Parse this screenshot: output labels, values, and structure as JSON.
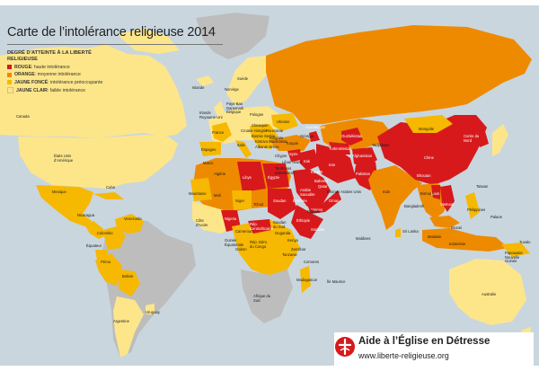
{
  "title": "Carte de l’intolérance religieuse 2014",
  "legend": {
    "heading": "DEGRÉ D’ATTEINTE À LA LIBERTÉ RELIGIEUSE",
    "items": [
      {
        "level": "ROUGE",
        "desc": ": haute intolérance",
        "color": "#d7191c"
      },
      {
        "level": "ORANGE",
        "desc": ": moyenne intolérance",
        "color": "#ee8a00"
      },
      {
        "level": "JAUNE FONCÉ",
        "desc": ": intolérance préoccupante",
        "color": "#f6b800"
      },
      {
        "level": "JAUNE CLAIR",
        "desc": ": faible intolérance",
        "color": "#fde68a"
      }
    ]
  },
  "colors": {
    "sea": "#c9d6de",
    "neutral": "#bdbdbd",
    "red": "#d7191c",
    "orange": "#ee8a00",
    "dark_yellow": "#f6b800",
    "light_yellow": "#fde68a"
  },
  "countries": {
    "canada": "Canada",
    "usa": "États Unis d’Amérique",
    "mexique": "Mexique",
    "cuba": "Cuba",
    "nicaragua": "Nicaragua",
    "venezuela": "Venezuela",
    "colombie": "Colombie",
    "equateur": "Équateur",
    "perou": "Pérou",
    "bolivie": "Bolivie",
    "uruguay": "Uruguay",
    "argentine": "Argentine",
    "suede": "Suède",
    "norvege": "Norvège",
    "islande": "Islande",
    "irlande": "Irlande Royaume-Uni",
    "paysbas": "Pays-Bas Danemark Belgique",
    "pologne": "Pologne",
    "france": "France",
    "espagne": "Espagne",
    "italie": "Italie",
    "slovaquie": "Slovaquie",
    "croatie": "Croatie Hongrie",
    "bosnie": "Bosnie Serbie",
    "ukraine": "Ukraine",
    "roumanie": "Roumanie",
    "bulgarie": "Bulgarie",
    "kosovo": "Kosovo Macédoine",
    "albanie": "Albanie Grèce",
    "georgie": "Géorgie",
    "chypre": "Chypre",
    "liban": "Liban Israël",
    "palestine": "Territoires palestiniens",
    "syrie": "Syrie",
    "turquie": "Turquie",
    "irak": "Irak",
    "iran": "Iran",
    "koweit": "Koweït",
    "bahrein": "Bahreïn",
    "qatar": "Qatar",
    "emirats": "Émirats Arabes Unis",
    "arabie": "Arabie Saoudite",
    "oman": "Oman",
    "yemen": "Yémen",
    "ouzbekistan": "Ouzbékistan",
    "turkmenistan": "Turkménistan",
    "azerbaidjan": "Azerbaïdjan",
    "afghanistan": "Afghanistan",
    "pakistan": "Pakistan",
    "tadjikistan": "Tadjikistan",
    "inde": "Inde",
    "bangladesh": "Bangladesh",
    "srilanka": "Sri Lanka",
    "maldives": "Maldives",
    "bhoutan": "Bhoutan",
    "birmanie": "Birmanie",
    "laos": "Laos",
    "vietnam": "Vietnam",
    "chine": "Chine",
    "mongolie": "Mongolie",
    "coree": "Corée du Nord",
    "taiwan": "Taïwan",
    "philippines": "Philippines",
    "brunei": "Brunei",
    "malaisie": "Malaisie",
    "indonesie": "Indonésie",
    "palaos": "Palaos",
    "tuvalu": "Tuvalu",
    "png": "Papouasie Nouvelle Guinée",
    "australie": "Australie",
    "nz": "Nouvelle Zélande",
    "algerie": "Algérie",
    "maroc": "Maroc",
    "mauritanie": "Mauritanie",
    "mali": "Mali",
    "niger": "Niger",
    "tchad": "Tchad",
    "libye": "Libye",
    "egypte": "Égypte",
    "soudan": "Soudan",
    "erythree": "Érythrée",
    "ethiopie": "Éthiopie",
    "djibouti": "Djibouti",
    "somalie": "Somalie",
    "kenya": "Kenya",
    "tanzanie": "Tanzanie",
    "nigeria": "Nigeria",
    "cotedivoire": "Côte d’Ivoire",
    "cameroun": "Cameroun",
    "guinee": "Guinée Équatoriale",
    "gabon": "Gabon",
    "rca": "Rép. Centrafricaine",
    "congo": "Rép. Dém. du Congo",
    "soudansud": "Soudan du Sud",
    "ouganda": "Ouganda",
    "zanzibar": "Zanzibar",
    "comores": "Comores",
    "madagascar": "Madagascar",
    "maurice": "Île Maurice",
    "afriquesud": "Afrique du Sud",
    "russie": "Russie"
  },
  "brand": {
    "name": "Aide à l’Église en Détresse",
    "url": "www.liberte-religieuse.org"
  }
}
